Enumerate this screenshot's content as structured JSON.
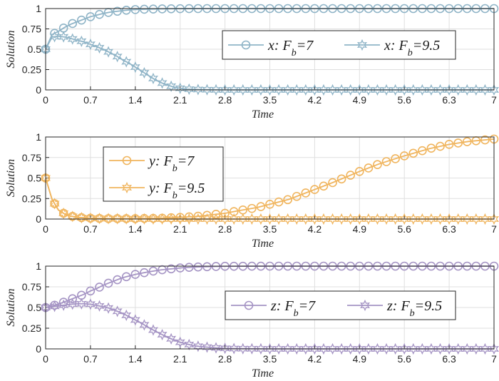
{
  "chart_data": [
    {
      "type": "line",
      "xlabel": "Time",
      "ylabel": "Solution",
      "xlim": [
        0,
        7
      ],
      "ylim": [
        0,
        1
      ],
      "xticks": [
        "0",
        "0.7",
        "1.4",
        "2.1",
        "2.8",
        "3.5",
        "4.2",
        "4.9",
        "5.6",
        "6.3",
        "7"
      ],
      "yticks": [
        "0",
        "0.25",
        "0.5",
        "0.75",
        "1"
      ],
      "grid": true,
      "legend_position": "top-right",
      "color": "#8fb4c7",
      "series": [
        {
          "name": "x: F_b=7",
          "var": "x",
          "fb": "7",
          "marker": "circle",
          "x": [
            0,
            0.1,
            0.2,
            0.3,
            0.4,
            0.5,
            0.6,
            0.7,
            0.8,
            0.9,
            1.0,
            1.1,
            1.2,
            1.3,
            1.4,
            1.6,
            1.8,
            2.0,
            2.4,
            2.8,
            3.5,
            4.2,
            4.9,
            5.6,
            6.3,
            7.0
          ],
          "y": [
            0.5,
            0.68,
            0.72,
            0.77,
            0.81,
            0.84,
            0.87,
            0.9,
            0.92,
            0.94,
            0.955,
            0.965,
            0.975,
            0.983,
            0.988,
            0.993,
            0.996,
            0.998,
            1,
            1,
            1,
            1,
            1,
            1,
            1,
            1
          ]
        },
        {
          "name": "x: F_b=9.5",
          "var": "x",
          "fb": "9.5",
          "marker": "star",
          "x": [
            0,
            0.1,
            0.2,
            0.3,
            0.4,
            0.5,
            0.6,
            0.7,
            0.8,
            0.9,
            1.0,
            1.1,
            1.2,
            1.3,
            1.4,
            1.5,
            1.6,
            1.7,
            1.8,
            1.9,
            2.0,
            2.1,
            2.2,
            2.4,
            2.6,
            2.8,
            3.5,
            4.2,
            4.9,
            5.6,
            6.3,
            7.0
          ],
          "y": [
            0.5,
            0.65,
            0.66,
            0.65,
            0.63,
            0.61,
            0.59,
            0.56,
            0.53,
            0.5,
            0.46,
            0.42,
            0.37,
            0.33,
            0.28,
            0.23,
            0.18,
            0.13,
            0.09,
            0.06,
            0.035,
            0.02,
            0.01,
            0.004,
            0.001,
            0,
            0,
            0,
            0,
            0,
            0,
            0
          ]
        }
      ]
    },
    {
      "type": "line",
      "xlabel": "Time",
      "ylabel": "Solution",
      "xlim": [
        0,
        7
      ],
      "ylim": [
        0,
        1
      ],
      "xticks": [
        "0",
        "0.7",
        "1.4",
        "2.1",
        "2.8",
        "3.5",
        "4.2",
        "4.9",
        "5.6",
        "6.3",
        "7"
      ],
      "yticks": [
        "0",
        "0.25",
        "0.5",
        "0.75",
        "1"
      ],
      "grid": true,
      "legend_position": "top-left",
      "color": "#f0b55e",
      "series": [
        {
          "name": "y: F_b=7",
          "var": "y",
          "fb": "7",
          "marker": "circle",
          "x": [
            0,
            0.1,
            0.2,
            0.3,
            0.4,
            0.5,
            0.7,
            1.0,
            1.4,
            1.8,
            2.1,
            2.4,
            2.8,
            3.0,
            3.3,
            3.5,
            3.8,
            4.0,
            4.2,
            4.5,
            4.9,
            5.2,
            5.6,
            6.0,
            6.3,
            6.6,
            7.0
          ],
          "y": [
            0.5,
            0.24,
            0.11,
            0.06,
            0.035,
            0.02,
            0.01,
            0.005,
            0.005,
            0.01,
            0.02,
            0.035,
            0.07,
            0.1,
            0.14,
            0.18,
            0.24,
            0.3,
            0.36,
            0.45,
            0.58,
            0.67,
            0.77,
            0.86,
            0.91,
            0.945,
            0.975
          ]
        },
        {
          "name": "y: F_b=9.5",
          "var": "y",
          "fb": "9.5",
          "marker": "star",
          "x": [
            0,
            0.1,
            0.2,
            0.3,
            0.4,
            0.5,
            0.7,
            1.0,
            1.4,
            2.1,
            2.8,
            3.5,
            4.2,
            4.9,
            5.6,
            6.3,
            7.0
          ],
          "y": [
            0.5,
            0.24,
            0.11,
            0.06,
            0.035,
            0.02,
            0.01,
            0.005,
            0.002,
            0,
            0,
            0,
            0,
            0,
            0,
            0,
            0
          ]
        }
      ]
    },
    {
      "type": "line",
      "xlabel": "Time",
      "ylabel": "Solution",
      "xlim": [
        0,
        7
      ],
      "ylim": [
        0,
        1
      ],
      "xticks": [
        "0",
        "0.7",
        "1.4",
        "2.1",
        "2.8",
        "3.5",
        "4.2",
        "4.9",
        "5.6",
        "6.3",
        "7"
      ],
      "yticks": [
        "0",
        "0.25",
        "0.5",
        "0.75",
        "1"
      ],
      "grid": true,
      "legend_position": "top-right",
      "color": "#a594c4",
      "series": [
        {
          "name": "z: F_b=7",
          "var": "z",
          "fb": "7",
          "marker": "circle",
          "x": [
            0,
            0.1,
            0.2,
            0.3,
            0.4,
            0.5,
            0.6,
            0.7,
            0.8,
            0.9,
            1.0,
            1.2,
            1.4,
            1.6,
            1.8,
            2.0,
            2.1,
            2.2,
            2.4,
            2.6,
            2.8,
            3.5,
            4.2,
            4.9,
            5.6,
            6.3,
            7.0
          ],
          "y": [
            0.5,
            0.52,
            0.54,
            0.57,
            0.6,
            0.63,
            0.66,
            0.7,
            0.73,
            0.77,
            0.8,
            0.86,
            0.9,
            0.93,
            0.955,
            0.97,
            0.978,
            0.984,
            0.99,
            0.995,
            0.998,
            1,
            1,
            1,
            1,
            1,
            1
          ]
        },
        {
          "name": "z: F_b=9.5",
          "var": "z",
          "fb": "9.5",
          "marker": "star",
          "x": [
            0,
            0.1,
            0.2,
            0.3,
            0.4,
            0.5,
            0.6,
            0.7,
            0.8,
            0.9,
            1.0,
            1.1,
            1.2,
            1.3,
            1.4,
            1.5,
            1.6,
            1.7,
            1.8,
            1.9,
            2.0,
            2.1,
            2.2,
            2.3,
            2.4,
            2.6,
            2.8,
            3.0,
            3.5,
            4.2,
            4.9,
            5.6,
            6.3,
            7.0
          ],
          "y": [
            0.5,
            0.51,
            0.52,
            0.53,
            0.54,
            0.545,
            0.545,
            0.54,
            0.525,
            0.51,
            0.49,
            0.46,
            0.43,
            0.39,
            0.35,
            0.31,
            0.26,
            0.22,
            0.18,
            0.14,
            0.11,
            0.08,
            0.06,
            0.04,
            0.03,
            0.015,
            0.007,
            0.003,
            0,
            0,
            0,
            0,
            0,
            0
          ]
        }
      ]
    }
  ]
}
